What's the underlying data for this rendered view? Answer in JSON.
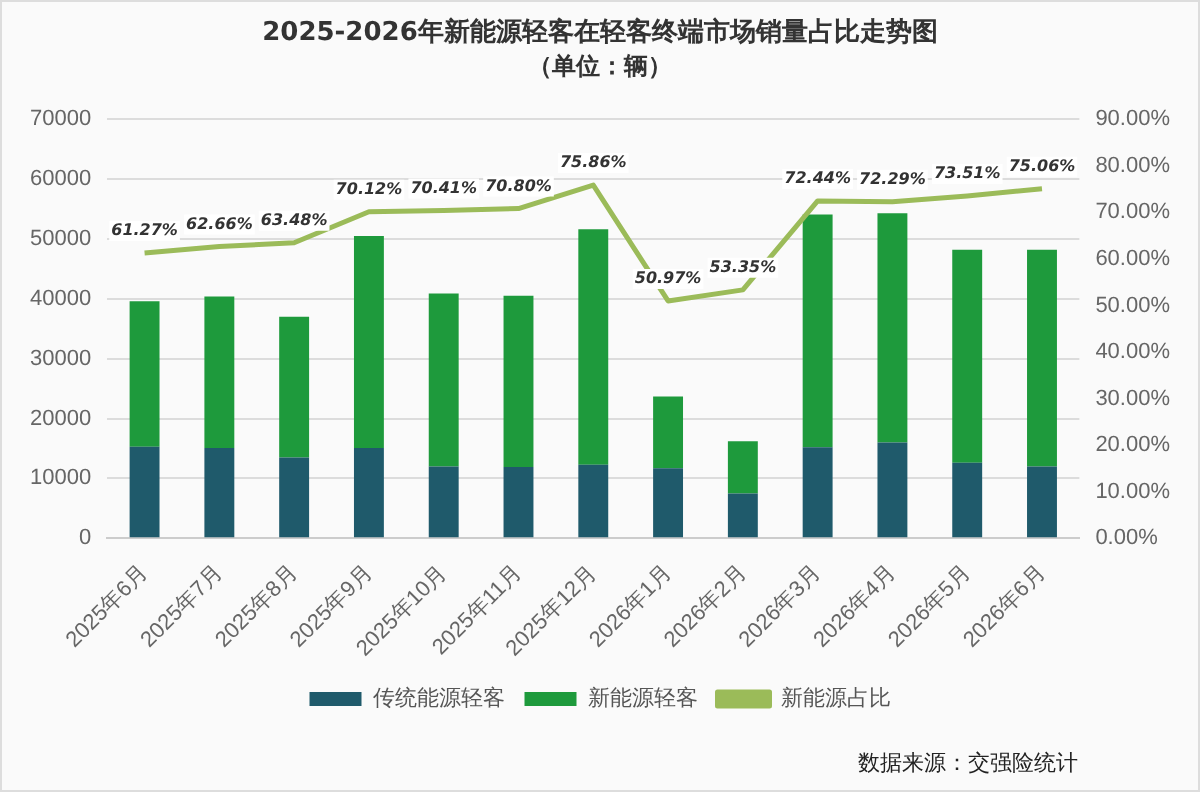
{
  "chart_data": {
    "type": "bar",
    "title": "2025-2026年新能源轻客在轻客终端市场销量占比走势图",
    "subtitle": "（单位：辆）",
    "categories": [
      "2025年6月",
      "2025年7月",
      "2025年8月",
      "2025年9月",
      "2025年10月",
      "2025年11月",
      "2025年12月",
      "2026年1月",
      "2026年2月",
      "2026年3月",
      "2026年4月",
      "2026年5月",
      "2026年6月"
    ],
    "stacked": true,
    "series": [
      {
        "name": "传统能源轻客",
        "color": "#1f5a6b",
        "values": [
          15300,
          15100,
          13500,
          15100,
          12000,
          11900,
          12300,
          11700,
          7500,
          15200,
          16000,
          12600,
          12000
        ]
      },
      {
        "name": "新能源轻客",
        "color": "#1e9a3c",
        "values": [
          24300,
          25300,
          23500,
          35400,
          28900,
          28600,
          39300,
          12000,
          8700,
          38900,
          38300,
          35600,
          36200
        ]
      },
      {
        "name": "新能源占比",
        "type": "line",
        "axis": "y2",
        "color": "#9bbb59",
        "values": [
          61.27,
          62.66,
          63.48,
          70.12,
          70.41,
          70.8,
          75.86,
          50.97,
          53.35,
          72.44,
          72.29,
          73.51,
          75.06
        ],
        "value_labels": [
          "61.27%",
          "62.66%",
          "63.48%",
          "70.12%",
          "70.41%",
          "70.80%",
          "75.86%",
          "50.97%",
          "53.35%",
          "72.44%",
          "72.29%",
          "73.51%",
          "75.06%"
        ]
      }
    ],
    "ylim": [
      0,
      70000
    ],
    "yticks": [
      0,
      10000,
      20000,
      30000,
      40000,
      50000,
      60000,
      70000
    ],
    "y2lim": [
      0,
      90
    ],
    "y2ticks": [
      {
        "value": 0,
        "label": "0.00%"
      },
      {
        "value": 10,
        "label": "10.00%"
      },
      {
        "value": 20,
        "label": "20.00%"
      },
      {
        "value": 30,
        "label": "30.00%"
      },
      {
        "value": 40,
        "label": "40.00%"
      },
      {
        "value": 50,
        "label": "50.00%"
      },
      {
        "value": 60,
        "label": "60.00%"
      },
      {
        "value": 70,
        "label": "70.00%"
      },
      {
        "value": 80,
        "label": "80.00%"
      },
      {
        "value": 90,
        "label": "90.00%"
      }
    ],
    "grid": "y",
    "legend": "bottom",
    "annotations": [
      "数据来源：交强险统计"
    ]
  }
}
